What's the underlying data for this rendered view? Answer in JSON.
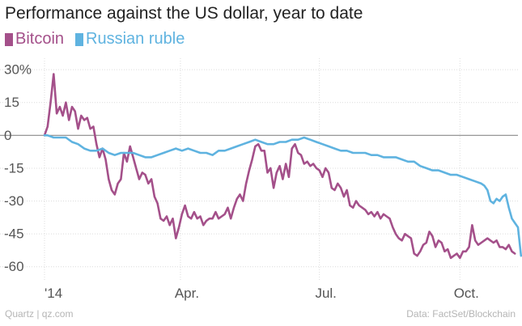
{
  "chart_data": {
    "type": "line",
    "title": "Performance against the US dollar, year to date",
    "xlabel": "",
    "ylabel": "",
    "ylim": [
      -66,
      33
    ],
    "xlim": [
      0,
      310
    ],
    "grid": true,
    "legend": "top-left",
    "y_ticks": [
      {
        "value": 30,
        "label": "30%"
      },
      {
        "value": 15,
        "label": "15"
      },
      {
        "value": 0,
        "label": "0"
      },
      {
        "value": -15,
        "label": "-15"
      },
      {
        "value": -30,
        "label": "-30"
      },
      {
        "value": -45,
        "label": "-45"
      },
      {
        "value": -60,
        "label": "-60"
      }
    ],
    "x_ticks": [
      {
        "value": 0,
        "label": "'14"
      },
      {
        "value": 89,
        "label": "Apr."
      },
      {
        "value": 180,
        "label": "Jul."
      },
      {
        "value": 272,
        "label": "Oct."
      }
    ],
    "series": [
      {
        "name": "Bitcoin",
        "color": "#a4508a",
        "points": [
          [
            0,
            0
          ],
          [
            2,
            4
          ],
          [
            4,
            15
          ],
          [
            6,
            28
          ],
          [
            8,
            10
          ],
          [
            10,
            13
          ],
          [
            12,
            9
          ],
          [
            14,
            15
          ],
          [
            16,
            7
          ],
          [
            18,
            13
          ],
          [
            20,
            11
          ],
          [
            22,
            3
          ],
          [
            24,
            9
          ],
          [
            26,
            7
          ],
          [
            28,
            8
          ],
          [
            30,
            3
          ],
          [
            32,
            4
          ],
          [
            34,
            -4
          ],
          [
            36,
            -10
          ],
          [
            38,
            -6
          ],
          [
            40,
            -11
          ],
          [
            42,
            -20
          ],
          [
            44,
            -25
          ],
          [
            46,
            -27
          ],
          [
            48,
            -22
          ],
          [
            50,
            -20
          ],
          [
            52,
            -8
          ],
          [
            54,
            -12
          ],
          [
            56,
            -5
          ],
          [
            58,
            -10
          ],
          [
            60,
            -15
          ],
          [
            62,
            -20
          ],
          [
            64,
            -17
          ],
          [
            66,
            -18
          ],
          [
            68,
            -22
          ],
          [
            70,
            -20
          ],
          [
            72,
            -28
          ],
          [
            74,
            -31
          ],
          [
            76,
            -38
          ],
          [
            78,
            -39
          ],
          [
            80,
            -37
          ],
          [
            82,
            -41
          ],
          [
            84,
            -38
          ],
          [
            86,
            -47
          ],
          [
            88,
            -42
          ],
          [
            90,
            -36
          ],
          [
            92,
            -32
          ],
          [
            94,
            -37
          ],
          [
            96,
            -38
          ],
          [
            98,
            -35
          ],
          [
            100,
            -38
          ],
          [
            102,
            -37
          ],
          [
            104,
            -41
          ],
          [
            106,
            -39
          ],
          [
            108,
            -38
          ],
          [
            110,
            -38
          ],
          [
            112,
            -35
          ],
          [
            114,
            -38
          ],
          [
            116,
            -37
          ],
          [
            118,
            -36
          ],
          [
            120,
            -33
          ],
          [
            122,
            -38
          ],
          [
            124,
            -33
          ],
          [
            126,
            -29
          ],
          [
            128,
            -27
          ],
          [
            130,
            -30
          ],
          [
            132,
            -22
          ],
          [
            134,
            -16
          ],
          [
            136,
            -11
          ],
          [
            138,
            -5
          ],
          [
            140,
            -4
          ],
          [
            142,
            -7
          ],
          [
            144,
            -7
          ],
          [
            146,
            -17
          ],
          [
            148,
            -15
          ],
          [
            150,
            -24
          ],
          [
            152,
            -17
          ],
          [
            154,
            -14
          ],
          [
            156,
            -20
          ],
          [
            158,
            -13
          ],
          [
            160,
            -19
          ],
          [
            162,
            -6
          ],
          [
            164,
            -4
          ],
          [
            166,
            -8
          ],
          [
            168,
            -9
          ],
          [
            170,
            -13
          ],
          [
            172,
            -12
          ],
          [
            174,
            -14
          ],
          [
            176,
            -13
          ],
          [
            178,
            -15
          ],
          [
            180,
            -16
          ],
          [
            182,
            -19
          ],
          [
            184,
            -15
          ],
          [
            186,
            -17
          ],
          [
            188,
            -24
          ],
          [
            190,
            -25
          ],
          [
            192,
            -22
          ],
          [
            194,
            -24
          ],
          [
            196,
            -28
          ],
          [
            198,
            -25
          ],
          [
            200,
            -32
          ],
          [
            202,
            -33
          ],
          [
            204,
            -30
          ],
          [
            206,
            -32
          ],
          [
            208,
            -33
          ],
          [
            210,
            -34
          ],
          [
            212,
            -36
          ],
          [
            214,
            -35
          ],
          [
            216,
            -37
          ],
          [
            218,
            -35
          ],
          [
            220,
            -38
          ],
          [
            222,
            -36
          ],
          [
            224,
            -37
          ],
          [
            226,
            -38
          ],
          [
            228,
            -42
          ],
          [
            230,
            -45
          ],
          [
            232,
            -47
          ],
          [
            234,
            -48
          ],
          [
            236,
            -45
          ],
          [
            238,
            -46
          ],
          [
            240,
            -47
          ],
          [
            242,
            -54
          ],
          [
            244,
            -55
          ],
          [
            246,
            -53
          ],
          [
            248,
            -50
          ],
          [
            250,
            -49
          ],
          [
            252,
            -44
          ],
          [
            254,
            -46
          ],
          [
            256,
            -51
          ],
          [
            258,
            -48
          ],
          [
            260,
            -49
          ],
          [
            262,
            -53
          ],
          [
            264,
            -52
          ],
          [
            266,
            -56
          ],
          [
            268,
            -55
          ],
          [
            270,
            -54
          ],
          [
            272,
            -56
          ],
          [
            274,
            -53
          ],
          [
            276,
            -53
          ],
          [
            278,
            -51
          ],
          [
            280,
            -41
          ],
          [
            282,
            -48
          ],
          [
            284,
            -50
          ],
          [
            286,
            -49
          ],
          [
            288,
            -48
          ],
          [
            290,
            -47
          ],
          [
            292,
            -48
          ],
          [
            294,
            -49
          ],
          [
            296,
            -48
          ],
          [
            298,
            -51
          ],
          [
            300,
            -51
          ],
          [
            302,
            -52
          ],
          [
            304,
            -50
          ],
          [
            306,
            -53
          ],
          [
            308,
            -54
          ]
        ]
      },
      {
        "name": "Russian ruble",
        "color": "#5fb3e0",
        "points": [
          [
            0,
            0
          ],
          [
            2,
            0
          ],
          [
            6,
            -1
          ],
          [
            10,
            -1
          ],
          [
            14,
            -1
          ],
          [
            18,
            -3
          ],
          [
            22,
            -4
          ],
          [
            26,
            -6
          ],
          [
            30,
            -7
          ],
          [
            34,
            -7
          ],
          [
            38,
            -6
          ],
          [
            42,
            -8
          ],
          [
            46,
            -9
          ],
          [
            50,
            -8
          ],
          [
            54,
            -8
          ],
          [
            58,
            -8
          ],
          [
            62,
            -9
          ],
          [
            66,
            -10
          ],
          [
            70,
            -10
          ],
          [
            74,
            -9
          ],
          [
            78,
            -8
          ],
          [
            82,
            -7
          ],
          [
            86,
            -6
          ],
          [
            90,
            -7
          ],
          [
            94,
            -6
          ],
          [
            98,
            -7
          ],
          [
            102,
            -8
          ],
          [
            106,
            -8
          ],
          [
            110,
            -9
          ],
          [
            114,
            -7
          ],
          [
            118,
            -7
          ],
          [
            122,
            -6
          ],
          [
            126,
            -5
          ],
          [
            130,
            -4
          ],
          [
            134,
            -3
          ],
          [
            138,
            -2
          ],
          [
            142,
            -3
          ],
          [
            146,
            -4
          ],
          [
            150,
            -4
          ],
          [
            154,
            -3
          ],
          [
            158,
            -3
          ],
          [
            162,
            -2
          ],
          [
            166,
            -2
          ],
          [
            170,
            -1
          ],
          [
            174,
            -2
          ],
          [
            178,
            -3
          ],
          [
            182,
            -4
          ],
          [
            186,
            -5
          ],
          [
            190,
            -6
          ],
          [
            194,
            -7
          ],
          [
            198,
            -7
          ],
          [
            202,
            -8
          ],
          [
            206,
            -8
          ],
          [
            210,
            -8
          ],
          [
            214,
            -9
          ],
          [
            218,
            -9
          ],
          [
            222,
            -10
          ],
          [
            226,
            -10
          ],
          [
            230,
            -10
          ],
          [
            234,
            -11
          ],
          [
            238,
            -12
          ],
          [
            242,
            -12
          ],
          [
            246,
            -14
          ],
          [
            250,
            -15
          ],
          [
            254,
            -16
          ],
          [
            258,
            -16
          ],
          [
            262,
            -17
          ],
          [
            266,
            -18
          ],
          [
            270,
            -18
          ],
          [
            274,
            -19
          ],
          [
            278,
            -20
          ],
          [
            282,
            -21
          ],
          [
            286,
            -22
          ],
          [
            288,
            -23
          ],
          [
            290,
            -25
          ],
          [
            292,
            -30
          ],
          [
            294,
            -31
          ],
          [
            296,
            -29
          ],
          [
            298,
            -30
          ],
          [
            300,
            -28
          ],
          [
            302,
            -27
          ],
          [
            304,
            -33
          ],
          [
            306,
            -38
          ],
          [
            308,
            -40
          ],
          [
            310,
            -42
          ],
          [
            312,
            -55
          ]
        ]
      }
    ],
    "source_left": "Quartz | qz.com",
    "source_right": "Data: FactSet/Blockchain"
  }
}
